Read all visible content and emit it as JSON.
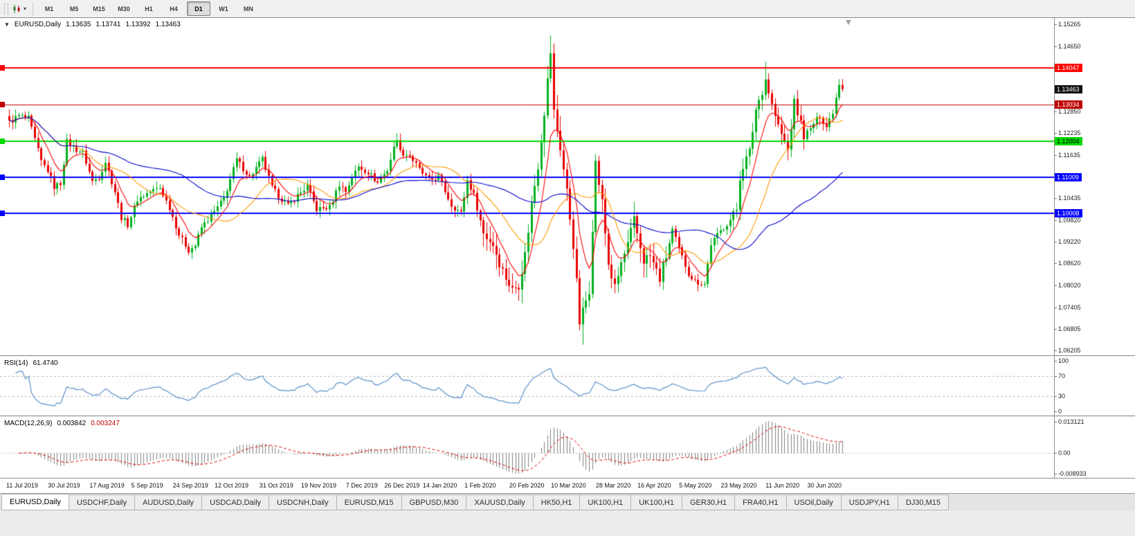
{
  "toolbar": {
    "timeframes": [
      "M1",
      "M5",
      "M15",
      "M30",
      "H1",
      "H4",
      "D1",
      "W1",
      "MN"
    ],
    "active_timeframe": "D1",
    "caret_icon": "▾"
  },
  "symbol_header": {
    "dropdown_icon": "▼",
    "title": "EURUSD,Daily",
    "open": "1.13635",
    "high": "1.13741",
    "low": "1.13392",
    "close": "1.13463"
  },
  "price_axis": {
    "ticks": [
      "1.15265",
      "1.14650",
      "1.12850",
      "1.12235",
      "1.11635",
      "1.10435",
      "1.09820",
      "1.09220",
      "1.08620",
      "1.08020",
      "1.07405",
      "1.06805",
      "1.06205"
    ]
  },
  "rsi_panel": {
    "label": "RSI(14)",
    "value": "61.4740",
    "axis_labels": [
      "100",
      "70",
      "30",
      "0"
    ],
    "levels": [
      70,
      30
    ],
    "line_color": "#5a8fc8"
  },
  "macd_panel": {
    "label": "MACD(12,26,9)",
    "macd_value": "0.003842",
    "signal_value": "0.003247",
    "axis_top": "0.013121",
    "axis_zero": "0.00",
    "axis_bottom": "-0.008933",
    "histogram_color": "#7f7f7f",
    "signal_color": "#e00000"
  },
  "date_axis": {
    "labels": [
      "11 Jul 2019",
      "30 Jul 2019",
      "17 Aug 2019",
      "5 Sep 2019",
      "24 Sep 2019",
      "12 Oct 2019",
      "31 Oct 2019",
      "19 Nov 2019",
      "7 Dec 2019",
      "26 Dec 2019",
      "14 Jan 2020",
      "1 Feb 2020",
      "20 Feb 2020",
      "10 Mar 2020",
      "28 Mar 2020",
      "16 Apr 2020",
      "5 May 2020",
      "23 May 2020",
      "11 Jun 2020",
      "30 Jun 2020"
    ],
    "bar_indices": [
      0,
      13,
      26,
      39,
      52,
      65,
      79,
      92,
      106,
      118,
      130,
      143,
      157,
      170,
      184,
      197,
      210,
      223,
      237,
      250
    ]
  },
  "tabs": {
    "active_index": 0,
    "items": [
      "EURUSD,Daily",
      "USDCHF,Daily",
      "AUDUSD,Daily",
      "USDCAD,Daily",
      "USDCNH,Daily",
      "EURUSD,M15",
      "GBPUSD,M30",
      "XAUUSD,Daily",
      "HK50,H1",
      "UK100,H1",
      "UK100,H1",
      "GER30,H1",
      "FRA40,H1",
      "USOil,Daily",
      "USDJPY,H1",
      "DJ30,M15"
    ]
  },
  "chart_data": {
    "type": "candlestick",
    "symbol": "EURUSD",
    "timeframe": "Daily",
    "current_ohlc": {
      "open": 1.13635,
      "high": 1.13741,
      "low": 1.13392,
      "close": 1.13463
    },
    "bid": {
      "price": 1.13463,
      "label": "1.13463",
      "color": "#101010",
      "text_color": "#ffffff"
    },
    "hlines": [
      {
        "price": 1.14047,
        "label": "1.14047",
        "color": "#ff0000",
        "text_color": "#ffffff",
        "width": 2
      },
      {
        "price": 1.13034,
        "label": "1.13034",
        "color": "#c00000",
        "text_color": "#ffffff",
        "width": 1
      },
      {
        "price": 1.12004,
        "label": "1.12004",
        "color": "#00d800",
        "text_color": "#000000",
        "width": 2
      },
      {
        "price": 1.11009,
        "label": "1.11009",
        "color": "#0000ff",
        "text_color": "#ffffff",
        "width": 2
      },
      {
        "price": 1.10008,
        "label": "1.10008",
        "color": "#0000ff",
        "text_color": "#ffffff",
        "width": 2
      }
    ],
    "price_range": {
      "top": 1.15438,
      "bottom": 1.06069
    },
    "bars_count": 261,
    "up_color": "#00b01e",
    "down_color": "#e80000",
    "close_keypoints": [
      [
        0,
        1.1254
      ],
      [
        3,
        1.1272
      ],
      [
        6,
        1.1265
      ],
      [
        10,
        1.1145
      ],
      [
        12,
        1.112
      ],
      [
        14,
        1.1075
      ],
      [
        16,
        1.1085
      ],
      [
        18,
        1.12
      ],
      [
        21,
        1.1178
      ],
      [
        23,
        1.117
      ],
      [
        26,
        1.109
      ],
      [
        28,
        1.1102
      ],
      [
        30,
        1.1145
      ],
      [
        33,
        1.1062
      ],
      [
        35,
        1.099
      ],
      [
        37,
        1.097
      ],
      [
        40,
        1.104
      ],
      [
        44,
        1.1062
      ],
      [
        47,
        1.1072
      ],
      [
        50,
        1.1017
      ],
      [
        53,
        1.0942
      ],
      [
        56,
        1.0899
      ],
      [
        58,
        1.0912
      ],
      [
        60,
        1.0962
      ],
      [
        64,
        1.1005
      ],
      [
        67,
        1.1042
      ],
      [
        71,
        1.115
      ],
      [
        75,
        1.1102
      ],
      [
        79,
        1.1152
      ],
      [
        82,
        1.1072
      ],
      [
        84,
        1.105
      ],
      [
        87,
        1.1022
      ],
      [
        90,
        1.1051
      ],
      [
        93,
        1.1076
      ],
      [
        96,
        1.1012
      ],
      [
        100,
        1.1018
      ],
      [
        103,
        1.1082
      ],
      [
        105,
        1.1062
      ],
      [
        107,
        1.1102
      ],
      [
        109,
        1.113
      ],
      [
        112,
        1.1116
      ],
      [
        115,
        1.1086
      ],
      [
        118,
        1.1122
      ],
      [
        121,
        1.1212
      ],
      [
        122,
        1.1172
      ],
      [
        125,
        1.1162
      ],
      [
        128,
        1.1122
      ],
      [
        131,
        1.1092
      ],
      [
        134,
        1.1102
      ],
      [
        138,
        1.1024
      ],
      [
        141,
        1.1002
      ],
      [
        143,
        1.1093
      ],
      [
        145,
        1.1052
      ],
      [
        148,
        1.0946
      ],
      [
        151,
        1.0916
      ],
      [
        154,
        1.0842
      ],
      [
        157,
        1.0788
      ],
      [
        159,
        1.0806
      ],
      [
        161,
        1.0886
      ],
      [
        163,
        1.1026
      ],
      [
        165,
        1.1136
      ],
      [
        167,
        1.1286
      ],
      [
        169,
        1.145
      ],
      [
        170,
        1.1282
      ],
      [
        172,
        1.1184
      ],
      [
        174,
        1.1062
      ],
      [
        176,
        1.0916
      ],
      [
        178,
        1.0698
      ],
      [
        179,
        1.0727
      ],
      [
        181,
        1.0792
      ],
      [
        183,
        1.114
      ],
      [
        185,
        1.1031
      ],
      [
        187,
        1.0862
      ],
      [
        189,
        1.0791
      ],
      [
        191,
        1.0862
      ],
      [
        193,
        1.0912
      ],
      [
        195,
        1.098
      ],
      [
        198,
        1.0872
      ],
      [
        200,
        1.0882
      ],
      [
        203,
        1.082
      ],
      [
        205,
        1.0882
      ],
      [
        207,
        1.0955
      ],
      [
        209,
        1.0902
      ],
      [
        212,
        1.0834
      ],
      [
        214,
        1.0812
      ],
      [
        217,
        1.0805
      ],
      [
        219,
        1.0916
      ],
      [
        222,
        1.0952
      ],
      [
        225,
        1.0983
      ],
      [
        227,
        1.1012
      ],
      [
        228,
        1.1101
      ],
      [
        229,
        1.1134
      ],
      [
        231,
        1.1172
      ],
      [
        233,
        1.1291
      ],
      [
        235,
        1.1342
      ],
      [
        236,
        1.1375
      ],
      [
        238,
        1.1302
      ],
      [
        240,
        1.1242
      ],
      [
        243,
        1.1177
      ],
      [
        245,
        1.1308
      ],
      [
        247,
        1.1252
      ],
      [
        248,
        1.1218
      ],
      [
        250,
        1.1234
      ],
      [
        251,
        1.1251
      ],
      [
        253,
        1.1272
      ],
      [
        255,
        1.1242
      ],
      [
        257,
        1.1284
      ],
      [
        259,
        1.13635
      ],
      [
        260,
        1.13463
      ]
    ],
    "wick_overrides": {
      "157": {
        "low": 1.0778
      },
      "169": {
        "high": 1.1495
      },
      "179": {
        "low": 1.0636
      },
      "236": {
        "high": 1.1422
      },
      "260": {
        "high": 1.13741,
        "low": 1.13392
      }
    },
    "moving_averages": [
      {
        "type": "ema",
        "period": 8,
        "color": "#ff0000"
      },
      {
        "type": "sma",
        "period": 21,
        "color": "#ff9900"
      },
      {
        "type": "sma",
        "period": 55,
        "color": "#0000cc"
      }
    ],
    "indicators": [
      {
        "name": "RSI",
        "period": 14,
        "current": 61.474
      },
      {
        "name": "MACD",
        "fast": 12,
        "slow": 26,
        "signal": 9,
        "current_macd": 0.003842,
        "current_signal": 0.003247
      }
    ]
  }
}
